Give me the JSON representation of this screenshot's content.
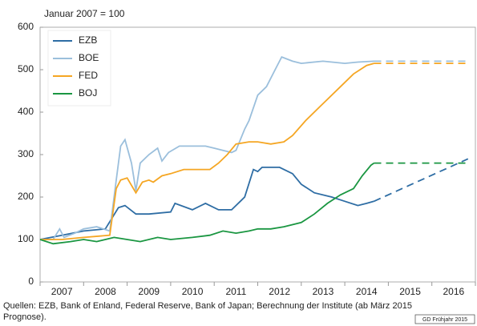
{
  "chart_data": {
    "type": "line",
    "subtitle": "Januar 2007 = 100",
    "categories": [
      "2007",
      "2008",
      "2009",
      "2010",
      "2011",
      "2012",
      "2013",
      "2014",
      "2015",
      "2016"
    ],
    "xlim": [
      2007,
      2017
    ],
    "xticks": [
      2007,
      2008,
      2009,
      2010,
      2011,
      2012,
      2013,
      2014,
      2015,
      2016,
      2017
    ],
    "ylim": [
      0,
      600
    ],
    "yticks": [
      0,
      100,
      200,
      300,
      400,
      500,
      600
    ],
    "grid": false,
    "legend": "upper left",
    "forecast_x": [
      2014.67,
      2016.83
    ],
    "series": [
      {
        "name": "EZB",
        "color": "#2e6da4",
        "x": [
          2007,
          2007.5,
          2008,
          2008.5,
          2008.8,
          2008.95,
          2009.2,
          2009.5,
          2010,
          2010.1,
          2010.5,
          2010.8,
          2011.1,
          2011.4,
          2011.6,
          2011.7,
          2011.9,
          2012,
          2012.1,
          2012.5,
          2012.8,
          2013,
          2013.3,
          2013.7,
          2014,
          2014.3,
          2014.5,
          2014.67
        ],
        "values": [
          100,
          110,
          120,
          125,
          175,
          180,
          160,
          160,
          165,
          185,
          170,
          185,
          170,
          170,
          190,
          200,
          265,
          260,
          270,
          270,
          255,
          230,
          210,
          200,
          190,
          180,
          185,
          190
        ],
        "forecast_values": [
          190,
          290
        ]
      },
      {
        "name": "BOE",
        "color": "#9bbfdc",
        "x": [
          2007,
          2007.3,
          2007.45,
          2007.55,
          2007.8,
          2008,
          2008.3,
          2008.6,
          2008.75,
          2008.85,
          2008.95,
          2009.1,
          2009.2,
          2009.3,
          2009.5,
          2009.7,
          2009.8,
          2009.95,
          2010.2,
          2010.5,
          2010.8,
          2011,
          2011.2,
          2011.4,
          2011.5,
          2011.7,
          2011.8,
          2012,
          2012.2,
          2012.4,
          2012.55,
          2012.8,
          2013,
          2013.5,
          2014,
          2014.3,
          2014.67
        ],
        "values": [
          100,
          100,
          125,
          105,
          115,
          125,
          130,
          120,
          240,
          320,
          335,
          280,
          215,
          280,
          300,
          315,
          285,
          305,
          320,
          320,
          320,
          315,
          310,
          305,
          310,
          360,
          380,
          440,
          460,
          500,
          530,
          520,
          515,
          520,
          515,
          518,
          520
        ],
        "forecast_values": [
          520,
          520
        ]
      },
      {
        "name": "FED",
        "color": "#f5a623",
        "x": [
          2007,
          2007.5,
          2008,
          2008.6,
          2008.75,
          2008.85,
          2009,
          2009.2,
          2009.35,
          2009.5,
          2009.6,
          2009.8,
          2010,
          2010.3,
          2010.7,
          2010.9,
          2011.1,
          2011.3,
          2011.5,
          2011.8,
          2012,
          2012.3,
          2012.6,
          2012.8,
          2013.1,
          2013.5,
          2013.9,
          2014.2,
          2014.5,
          2014.67
        ],
        "values": [
          100,
          100,
          105,
          110,
          220,
          240,
          245,
          210,
          235,
          240,
          235,
          250,
          255,
          265,
          265,
          265,
          280,
          300,
          325,
          330,
          330,
          325,
          330,
          345,
          380,
          420,
          460,
          490,
          510,
          515
        ],
        "forecast_values": [
          515,
          515
        ]
      },
      {
        "name": "BOJ",
        "color": "#1a9641",
        "x": [
          2007,
          2007.3,
          2007.7,
          2008,
          2008.3,
          2008.7,
          2009,
          2009.3,
          2009.7,
          2010,
          2010.5,
          2010.9,
          2011.2,
          2011.5,
          2011.8,
          2012,
          2012.3,
          2012.6,
          2013,
          2013.3,
          2013.6,
          2013.9,
          2014.2,
          2014.4,
          2014.6,
          2014.67
        ],
        "values": [
          100,
          90,
          95,
          100,
          95,
          105,
          100,
          95,
          105,
          100,
          105,
          110,
          120,
          115,
          120,
          125,
          125,
          130,
          140,
          160,
          185,
          205,
          220,
          250,
          275,
          280
        ],
        "forecast_values": [
          280,
          280
        ]
      }
    ],
    "source": [
      "Quellen: EZB, Bank of Enland, Federal Reserve, Bank of Japan; Berechnung der Institute (ab März 2015",
      "Prognose)."
    ],
    "credit": "GD Frühjahr 2015"
  }
}
